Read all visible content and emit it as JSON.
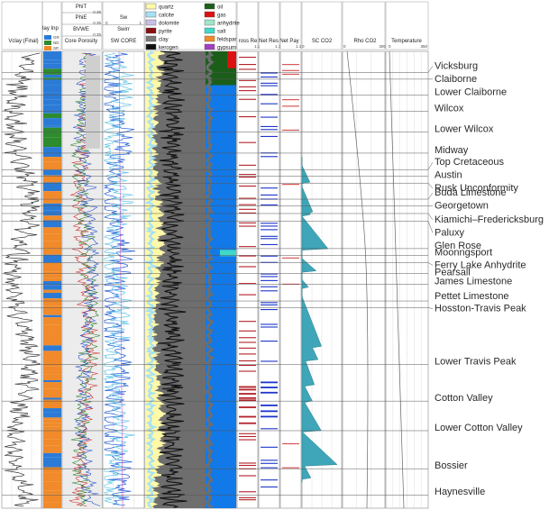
{
  "chart_data": {
    "type": "well-log",
    "tracks": [
      {
        "id": "vclay",
        "title": "Vclay (Final)"
      },
      {
        "id": "clay_inp",
        "title": "lay Inp",
        "legend": [
          "GR",
          "ND",
          "SP"
        ]
      },
      {
        "id": "core_porosity",
        "title": "Core Porosity",
        "curves": [
          "PhiT",
          "PhiE",
          "BVWE"
        ],
        "scale_max": "0.35"
      },
      {
        "id": "sw_core",
        "title": "SW CORE",
        "curves": [
          "Sw",
          "Swirr"
        ],
        "scale_min": "0",
        "scale_max": "1"
      },
      {
        "id": "lithology",
        "title": ""
      },
      {
        "id": "fluids",
        "title": ""
      },
      {
        "id": "gross_res",
        "title": "ross Re",
        "scale": "1.1"
      },
      {
        "id": "net_res",
        "title": "Net Res",
        "scale": "1.1"
      },
      {
        "id": "net_pay",
        "title": "Net Pay",
        "scale": "1.1"
      },
      {
        "id": "sc_co2",
        "title": "SC CO2",
        "scale_min": "0"
      },
      {
        "id": "rho_co2",
        "title": "Rho CO2",
        "scale_min": "0",
        "scale_max": "300"
      },
      {
        "id": "temperature",
        "title": "Temperature",
        "scale_min": "0",
        "scale_max": "350"
      }
    ],
    "mineral_legend": [
      {
        "name": "quartz",
        "color": "#fff9a8"
      },
      {
        "name": "calcite",
        "color": "#a6e0f5"
      },
      {
        "name": "dolomite",
        "color": "#c7bfe6"
      },
      {
        "name": "pyrite",
        "color": "#8a1010"
      },
      {
        "name": "clay",
        "color": "#7a7a7a"
      },
      {
        "name": "kerogen",
        "color": "#111111"
      },
      {
        "name": "oil",
        "color": "#1a5e1a"
      },
      {
        "name": "gas",
        "color": "#dd1111"
      },
      {
        "name": "anhydrite",
        "color": "#9ee6c9"
      },
      {
        "name": "salt",
        "color": "#3fd9c9"
      },
      {
        "name": "feldspar",
        "color": "#f08a2a"
      },
      {
        "name": "gypsum",
        "color": "#a040c0"
      }
    ],
    "formation_tops": [
      {
        "name": "Vicksburg",
        "depth": 0.0
      },
      {
        "name": "Claiborne",
        "depth": 1.6
      },
      {
        "name": "Lower Claiborne",
        "depth": 5.4
      },
      {
        "name": "Wilcox",
        "depth": 9.2
      },
      {
        "name": "Lower Wilcox",
        "depth": 14.1
      },
      {
        "name": "Midway",
        "depth": 19.1
      },
      {
        "name": "Top Cretaceous",
        "depth": 23.0
      },
      {
        "name": "Austin",
        "depth": 24.6
      },
      {
        "name": "Rusk Unconformity",
        "depth": 26.2
      },
      {
        "name": "Buda Limestone",
        "depth": 30.0
      },
      {
        "name": "Georgetown",
        "depth": 31.6
      },
      {
        "name": "Kiamichi–Fredericksburg",
        "depth": 33.4
      },
      {
        "name": "Paluxy",
        "depth": 35.2
      },
      {
        "name": "Glen Rose",
        "depth": 41.7
      },
      {
        "name": "Moonngsport",
        "depth": 43.3
      },
      {
        "name": "Ferry Lake Anhydrite",
        "depth": 45.0
      },
      {
        "name": "Pearsall",
        "depth": 47.6
      },
      {
        "name": "James Limestone",
        "depth": 50.1
      },
      {
        "name": "Pettet Limestone",
        "depth": 54.1
      },
      {
        "name": "Hosston-Travis Peak",
        "depth": 55.7
      },
      {
        "name": "Lower Travis Peak",
        "depth": 69.1
      },
      {
        "name": "Cotton Valley",
        "depth": 77.8
      },
      {
        "name": "Lower Cotton Valley",
        "depth": 84.8
      },
      {
        "name": "Bossier",
        "depth": 93.8
      },
      {
        "name": "Haynesville",
        "depth": 100.0
      }
    ]
  }
}
